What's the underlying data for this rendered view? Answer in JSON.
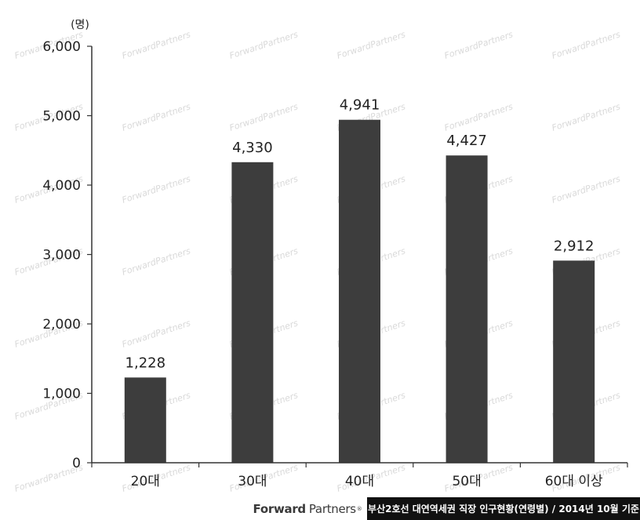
{
  "chart_data": {
    "type": "bar",
    "unit": "(명)",
    "categories": [
      "20대",
      "30대",
      "40대",
      "50대",
      "60대 이상"
    ],
    "values": [
      1228,
      4330,
      4941,
      4427,
      2912
    ],
    "value_labels": [
      "1,228",
      "4,330",
      "4,941",
      "4,427",
      "2,912"
    ],
    "ylim": [
      0,
      6000
    ],
    "yticks": [
      0,
      1000,
      2000,
      3000,
      4000,
      5000,
      6000
    ],
    "ytick_labels": [
      "0",
      "1,000",
      "2,000",
      "3,000",
      "4,000",
      "5,000",
      "6,000"
    ],
    "bar_color": "#3d3d3d",
    "grid": false,
    "legend": "none"
  },
  "watermark": "ForwardPartners",
  "footer": {
    "brand_bold": "Forward",
    "brand_light": "Partners",
    "caption": "부산2호선 대연역세권 직장 인구현황(연령별) / 2014년 10월 기준"
  }
}
